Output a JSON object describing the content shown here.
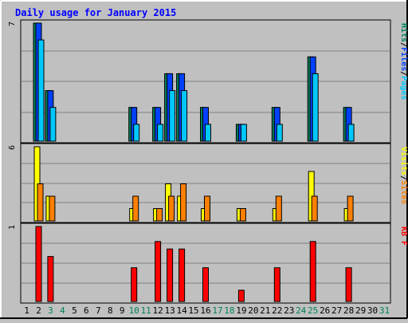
{
  "chart_data": {
    "type": "bar",
    "title": "Daily usage for January 2015",
    "days": [
      1,
      2,
      3,
      4,
      5,
      6,
      7,
      8,
      9,
      10,
      11,
      12,
      13,
      14,
      15,
      16,
      17,
      18,
      19,
      20,
      21,
      22,
      23,
      24,
      25,
      26,
      27,
      28,
      29,
      30,
      31
    ],
    "weekend_days": [
      3,
      4,
      10,
      11,
      17,
      18,
      24,
      25,
      31
    ],
    "colors": {
      "hits": "#00805c",
      "files": "#0040ff",
      "pages": "#00c8ff",
      "visits": "#ffff00",
      "sites": "#ff8000",
      "kbytes": "#ff0000",
      "title": "#0000ff",
      "weekend_label": "#00805c",
      "weekday_label": "#000000",
      "background": "#c0c0c0",
      "gridline": "#808080"
    },
    "panels": [
      {
        "id": "top",
        "max_label": "7",
        "ymax": 7,
        "legend": [
          {
            "label": "Hits",
            "color_key": "hits"
          },
          {
            "label": "/",
            "color_key": "weekday_label"
          },
          {
            "label": "Files",
            "color_key": "files"
          },
          {
            "label": "/",
            "color_key": "weekday_label"
          },
          {
            "label": "Pages",
            "color_key": "pages"
          }
        ],
        "series": [
          {
            "key": "hits",
            "values": [
              0,
              7,
              3,
              0,
              0,
              0,
              0,
              0,
              0,
              2,
              0,
              2,
              4,
              4,
              0,
              2,
              0,
              0,
              1,
              0,
              0,
              2,
              0,
              0,
              5,
              0,
              0,
              2,
              0,
              0,
              0
            ]
          },
          {
            "key": "files",
            "values": [
              0,
              7,
              3,
              0,
              0,
              0,
              0,
              0,
              0,
              2,
              0,
              2,
              4,
              4,
              0,
              2,
              0,
              0,
              1,
              0,
              0,
              2,
              0,
              0,
              5,
              0,
              0,
              2,
              0,
              0,
              0
            ]
          },
          {
            "key": "pages",
            "values": [
              0,
              6,
              2,
              0,
              0,
              0,
              0,
              0,
              0,
              1,
              0,
              1,
              3,
              3,
              0,
              1,
              0,
              0,
              1,
              0,
              0,
              1,
              0,
              0,
              4,
              0,
              0,
              1,
              0,
              0,
              0
            ]
          }
        ]
      },
      {
        "id": "middle",
        "max_label": "6",
        "ymax": 6,
        "legend": [
          {
            "label": "Visits",
            "color_key": "visits"
          },
          {
            "label": "/",
            "color_key": "weekday_label"
          },
          {
            "label": "Sites",
            "color_key": "sites"
          }
        ],
        "series": [
          {
            "key": "visits",
            "values": [
              0,
              6,
              2,
              0,
              0,
              0,
              0,
              0,
              0,
              1,
              0,
              1,
              3,
              2,
              0,
              1,
              0,
              0,
              1,
              0,
              0,
              1,
              0,
              0,
              4,
              0,
              0,
              1,
              0,
              0,
              0
            ]
          },
          {
            "key": "sites",
            "values": [
              0,
              3,
              2,
              0,
              0,
              0,
              0,
              0,
              0,
              2,
              0,
              1,
              2,
              3,
              0,
              2,
              0,
              0,
              1,
              0,
              0,
              2,
              0,
              0,
              2,
              0,
              0,
              2,
              0,
              0,
              0
            ]
          }
        ]
      },
      {
        "id": "bottom",
        "max_label": "1",
        "ymax": 1,
        "legend": [
          {
            "label": "KB F",
            "color_key": "kbytes"
          }
        ],
        "series": [
          {
            "key": "kbytes",
            "values": [
              0,
              1.0,
              0.6,
              0,
              0,
              0,
              0,
              0,
              0,
              0.45,
              0,
              0.8,
              0.7,
              0.7,
              0,
              0.45,
              0,
              0,
              0.15,
              0,
              0,
              0.45,
              0,
              0,
              0.8,
              0,
              0,
              0.45,
              0,
              0,
              0
            ]
          }
        ]
      }
    ]
  }
}
